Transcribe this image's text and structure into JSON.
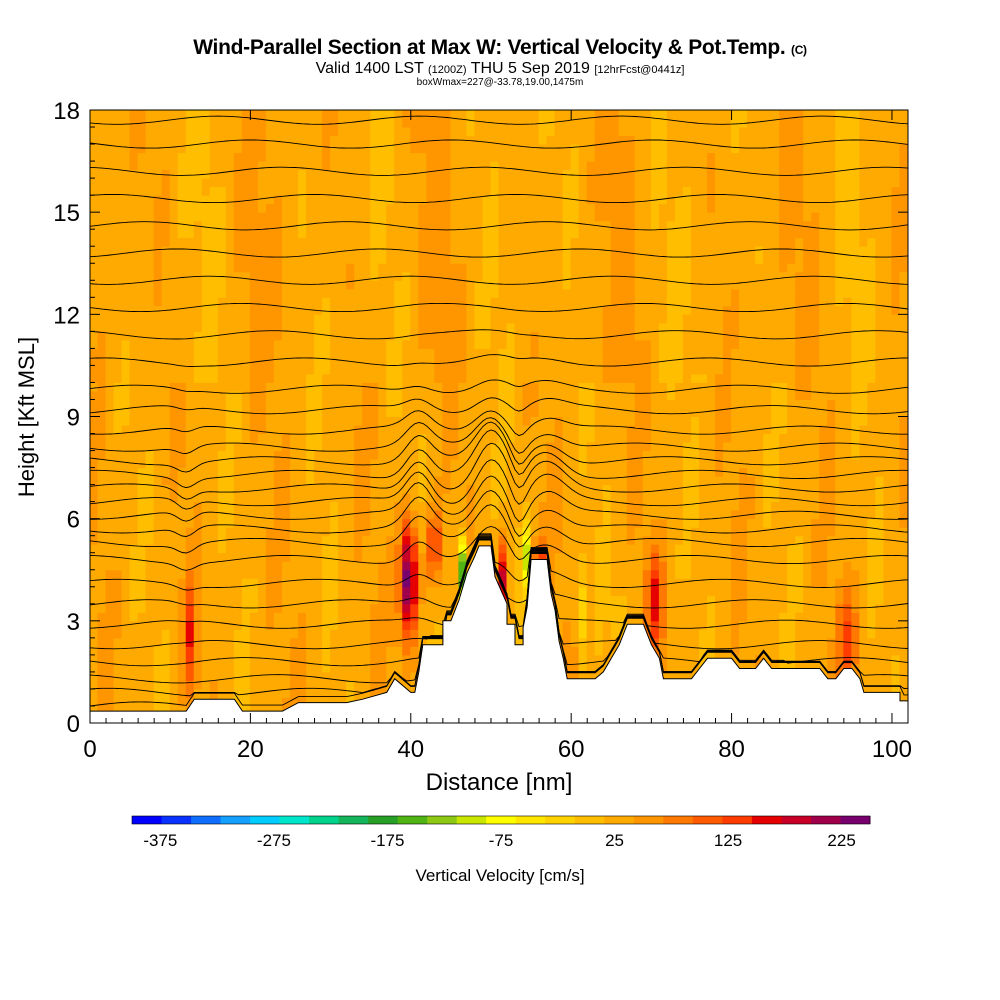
{
  "title": {
    "main": "Wind-Parallel Section at Max W: Vertical Velocity & Pot.Temp.",
    "copyright": "(C)",
    "line2_valid": "Valid 1400 LST",
    "line2_utc": "(1200Z)",
    "line2_date": "THU 5 Sep 2019",
    "line2_fcst": "[12hrFcst@0441z]",
    "line3": "boxWmax=227@-33.78,19.00,1475m"
  },
  "chart_data": {
    "type": "heatmap",
    "xlabel": "Distance [nm]",
    "ylabel": "Height [Kft MSL]",
    "xlim": [
      0,
      102
    ],
    "ylim": [
      0,
      18
    ],
    "x_ticks": [
      "0",
      "20",
      "40",
      "60",
      "80",
      "100"
    ],
    "x_tick_values": [
      0,
      20,
      40,
      60,
      80,
      100
    ],
    "y_ticks": [
      "0",
      "3",
      "6",
      "9",
      "12",
      "15",
      "18"
    ],
    "y_tick_values": [
      0,
      3,
      6,
      9,
      12,
      15,
      18
    ],
    "colorbar": {
      "label": "Vertical Velocity [cm/s]",
      "min": -400,
      "max": 250,
      "tick_labels": [
        "-375",
        "-275",
        "-175",
        "-75",
        "25",
        "125",
        "225"
      ],
      "tick_values": [
        -375,
        -275,
        -175,
        -75,
        25,
        125,
        225
      ],
      "colors": [
        "#0000ff",
        "#0a32ff",
        "#0f6eff",
        "#14a0ff",
        "#00ccff",
        "#00e6cc",
        "#00d28c",
        "#14b45a",
        "#28a028",
        "#50b414",
        "#8cc814",
        "#c8e600",
        "#ffff00",
        "#ffe600",
        "#ffd200",
        "#ffbe00",
        "#ffaa00",
        "#ff9600",
        "#ff7800",
        "#ff5a00",
        "#ff3c00",
        "#e60000",
        "#c80028",
        "#a0004b",
        "#78006e"
      ]
    },
    "terrain": [
      [
        0,
        0.35
      ],
      [
        5,
        0.35
      ],
      [
        10,
        0.35
      ],
      [
        12,
        0.35
      ],
      [
        13,
        0.7
      ],
      [
        18,
        0.7
      ],
      [
        19,
        0.35
      ],
      [
        24,
        0.35
      ],
      [
        26,
        0.6
      ],
      [
        32,
        0.6
      ],
      [
        34,
        0.7
      ],
      [
        37,
        0.9
      ],
      [
        38,
        1.3
      ],
      [
        40,
        0.9
      ],
      [
        40.5,
        0.9
      ],
      [
        41,
        1.5
      ],
      [
        41.5,
        2.3
      ],
      [
        44,
        2.3
      ],
      [
        44,
        3
      ],
      [
        45,
        3
      ],
      [
        45.5,
        3.3
      ],
      [
        46,
        3.6
      ],
      [
        46.5,
        4
      ],
      [
        47,
        4.4
      ],
      [
        48,
        4.9
      ],
      [
        48.5,
        5.2
      ],
      [
        50,
        5.2
      ],
      [
        50.5,
        4.3
      ],
      [
        52,
        3.5
      ],
      [
        52,
        2.9
      ],
      [
        53,
        2.9
      ],
      [
        53,
        2.3
      ],
      [
        54,
        2.3
      ],
      [
        54,
        2.8
      ],
      [
        54.5,
        3.4
      ],
      [
        55,
        4.8
      ],
      [
        57,
        4.8
      ],
      [
        57.5,
        3.8
      ],
      [
        58,
        3.3
      ],
      [
        58.5,
        2.4
      ],
      [
        59,
        1.9
      ],
      [
        59.5,
        1.3
      ],
      [
        63,
        1.3
      ],
      [
        64,
        1.5
      ],
      [
        65,
        1.9
      ],
      [
        66,
        2.3
      ],
      [
        67,
        2.9
      ],
      [
        69,
        2.9
      ],
      [
        70,
        2.3
      ],
      [
        71,
        1.9
      ],
      [
        71.5,
        1.3
      ],
      [
        75,
        1.3
      ],
      [
        76,
        1.6
      ],
      [
        77,
        1.9
      ],
      [
        80,
        1.9
      ],
      [
        81,
        1.6
      ],
      [
        83,
        1.6
      ],
      [
        84,
        1.9
      ],
      [
        85,
        1.6
      ],
      [
        91,
        1.6
      ],
      [
        92,
        1.3
      ],
      [
        93,
        1.3
      ],
      [
        94,
        1.6
      ],
      [
        95,
        1.6
      ],
      [
        96,
        1.3
      ],
      [
        96.5,
        0.9
      ],
      [
        101,
        0.9
      ],
      [
        101,
        0.65
      ],
      [
        102,
        0.65
      ]
    ],
    "theta_contour_heights": [
      0.5,
      0.9,
      1.3,
      1.8,
      2.3,
      2.9,
      3.5,
      4.1,
      4.8,
      5.3,
      5.7,
      6.1,
      6.5,
      6.9,
      7.3,
      7.7,
      8.1,
      8.6,
      9.2,
      9.8,
      10.6,
      11.4,
      12.2,
      13.0,
      13.8,
      14.6,
      15.4,
      16.2,
      17.0,
      17.7
    ],
    "updrafts": [
      {
        "x": 39.8,
        "y": 4.2,
        "sx": 1.1,
        "sy": 1.7,
        "w": 230
      },
      {
        "x": 43,
        "y": 5.2,
        "sx": 0.9,
        "sy": 1.0,
        "w": 110
      },
      {
        "x": 51.5,
        "y": 4.2,
        "sx": 0.7,
        "sy": 1.2,
        "w": 150
      },
      {
        "x": 56.2,
        "y": 3.8,
        "sx": 0.8,
        "sy": 1.3,
        "w": 180
      },
      {
        "x": 70.5,
        "y": 3.6,
        "sx": 1.0,
        "sy": 1.4,
        "w": 120
      },
      {
        "x": 12.5,
        "y": 2.6,
        "sx": 0.7,
        "sy": 1.6,
        "w": 100
      },
      {
        "x": 94.5,
        "y": 2.5,
        "sx": 1.2,
        "sy": 1.3,
        "w": 90
      }
    ],
    "downdrafts": [
      {
        "x": 46.6,
        "y": 4.4,
        "sx": 0.55,
        "sy": 1.0,
        "w": -220
      },
      {
        "x": 54.2,
        "y": 4.8,
        "sx": 0.45,
        "sy": 1.0,
        "w": -190
      },
      {
        "x": 61.3,
        "y": 3.3,
        "sx": 0.6,
        "sy": 1.5,
        "w": -70
      },
      {
        "x": 66.0,
        "y": 3.2,
        "sx": 0.5,
        "sy": 0.6,
        "w": -80
      }
    ]
  }
}
